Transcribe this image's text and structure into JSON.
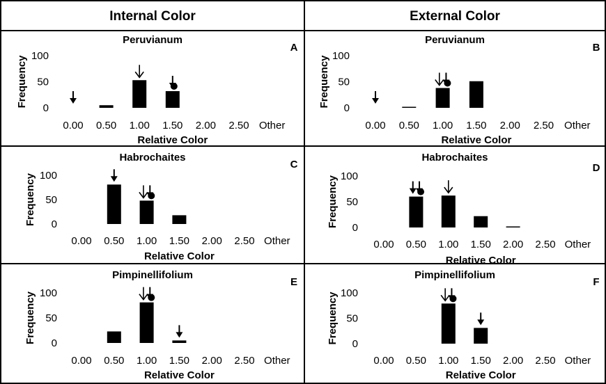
{
  "headers": {
    "left": "Internal Color",
    "right": "External Color"
  },
  "chart_data": [
    {
      "type": "bar",
      "panel": "A",
      "title": "Peruvianum",
      "xlabel": "Relative Color",
      "ylabel": "Frequency",
      "categories": [
        "0.00",
        "0.50",
        "1.00",
        "1.50",
        "2.00",
        "2.50",
        "Other"
      ],
      "values": [
        0,
        5,
        53,
        32,
        0,
        0,
        0
      ],
      "ylim": [
        0,
        100
      ],
      "yticks": [
        "0",
        "50",
        "100"
      ],
      "markers": [
        {
          "kind": "filled-arrow",
          "x": 0.0
        },
        {
          "kind": "open-arrow",
          "x": 1.0
        },
        {
          "kind": "filled-arrow-dot",
          "x": 1.5
        }
      ]
    },
    {
      "type": "bar",
      "panel": "B",
      "title": "Peruvianum",
      "xlabel": "Relative Color",
      "ylabel": "Frequency",
      "categories": [
        "0.00",
        "0.50",
        "1.00",
        "1.50",
        "2.00",
        "2.50",
        "Other"
      ],
      "values": [
        0,
        1,
        38,
        51,
        0,
        0,
        0
      ],
      "ylim": [
        0,
        100
      ],
      "yticks": [
        "0",
        "50",
        "100"
      ],
      "markers": [
        {
          "kind": "filled-arrow",
          "x": 0.0
        },
        {
          "kind": "open-arrow",
          "x": 0.95
        },
        {
          "kind": "filled-arrow-dot",
          "x": 1.05
        }
      ]
    },
    {
      "type": "bar",
      "panel": "C",
      "title": "Habrochaites",
      "xlabel": "Relative Color",
      "ylabel": "Frequency",
      "categories": [
        "0.00",
        "0.50",
        "1.00",
        "1.50",
        "2.00",
        "2.50",
        "Other"
      ],
      "values": [
        0,
        81,
        48,
        18,
        0,
        0,
        0
      ],
      "ylim": [
        0,
        100
      ],
      "yticks": [
        "0",
        "50",
        "100"
      ],
      "markers": [
        {
          "kind": "filled-arrow",
          "x": 0.5
        },
        {
          "kind": "open-arrow",
          "x": 0.95
        },
        {
          "kind": "filled-arrow-dot",
          "x": 1.05
        }
      ]
    },
    {
      "type": "bar",
      "panel": "D",
      "title": "Habrochaites",
      "xlabel": "Relative Color",
      "ylabel": "Frequency",
      "categories": [
        "0.00",
        "0.50",
        "1.00",
        "1.50",
        "2.00",
        "2.50",
        "Other"
      ],
      "values": [
        0,
        60,
        62,
        22,
        1,
        0,
        0
      ],
      "ylim": [
        0,
        100
      ],
      "yticks": [
        "0",
        "50",
        "100"
      ],
      "markers": [
        {
          "kind": "filled-arrow",
          "x": 0.45
        },
        {
          "kind": "filled-arrow-dot",
          "x": 0.55
        },
        {
          "kind": "open-arrow",
          "x": 1.0
        }
      ]
    },
    {
      "type": "bar",
      "panel": "E",
      "title": "Pimpinellifolium",
      "xlabel": "Relative Color",
      "ylabel": "Frequency",
      "categories": [
        "0.00",
        "0.50",
        "1.00",
        "1.50",
        "2.00",
        "2.50",
        "Other"
      ],
      "values": [
        0,
        23,
        81,
        5,
        0,
        0,
        0
      ],
      "ylim": [
        0,
        100
      ],
      "yticks": [
        "0",
        "50",
        "100"
      ],
      "markers": [
        {
          "kind": "open-arrow",
          "x": 0.95
        },
        {
          "kind": "filled-arrow-dot",
          "x": 1.05
        },
        {
          "kind": "filled-arrow",
          "x": 1.5
        }
      ]
    },
    {
      "type": "bar",
      "panel": "F",
      "title": "Pimpinellifolium",
      "xlabel": "Relative Color",
      "ylabel": "Frequency",
      "categories": [
        "0.00",
        "0.50",
        "1.00",
        "1.50",
        "2.00",
        "2.50",
        "Other"
      ],
      "values": [
        0,
        0,
        79,
        31,
        0,
        0,
        0
      ],
      "ylim": [
        0,
        100
      ],
      "yticks": [
        "0",
        "50",
        "100"
      ],
      "markers": [
        {
          "kind": "open-arrow",
          "x": 0.95
        },
        {
          "kind": "filled-arrow-dot",
          "x": 1.05
        },
        {
          "kind": "filled-arrow",
          "x": 1.5
        }
      ]
    }
  ]
}
